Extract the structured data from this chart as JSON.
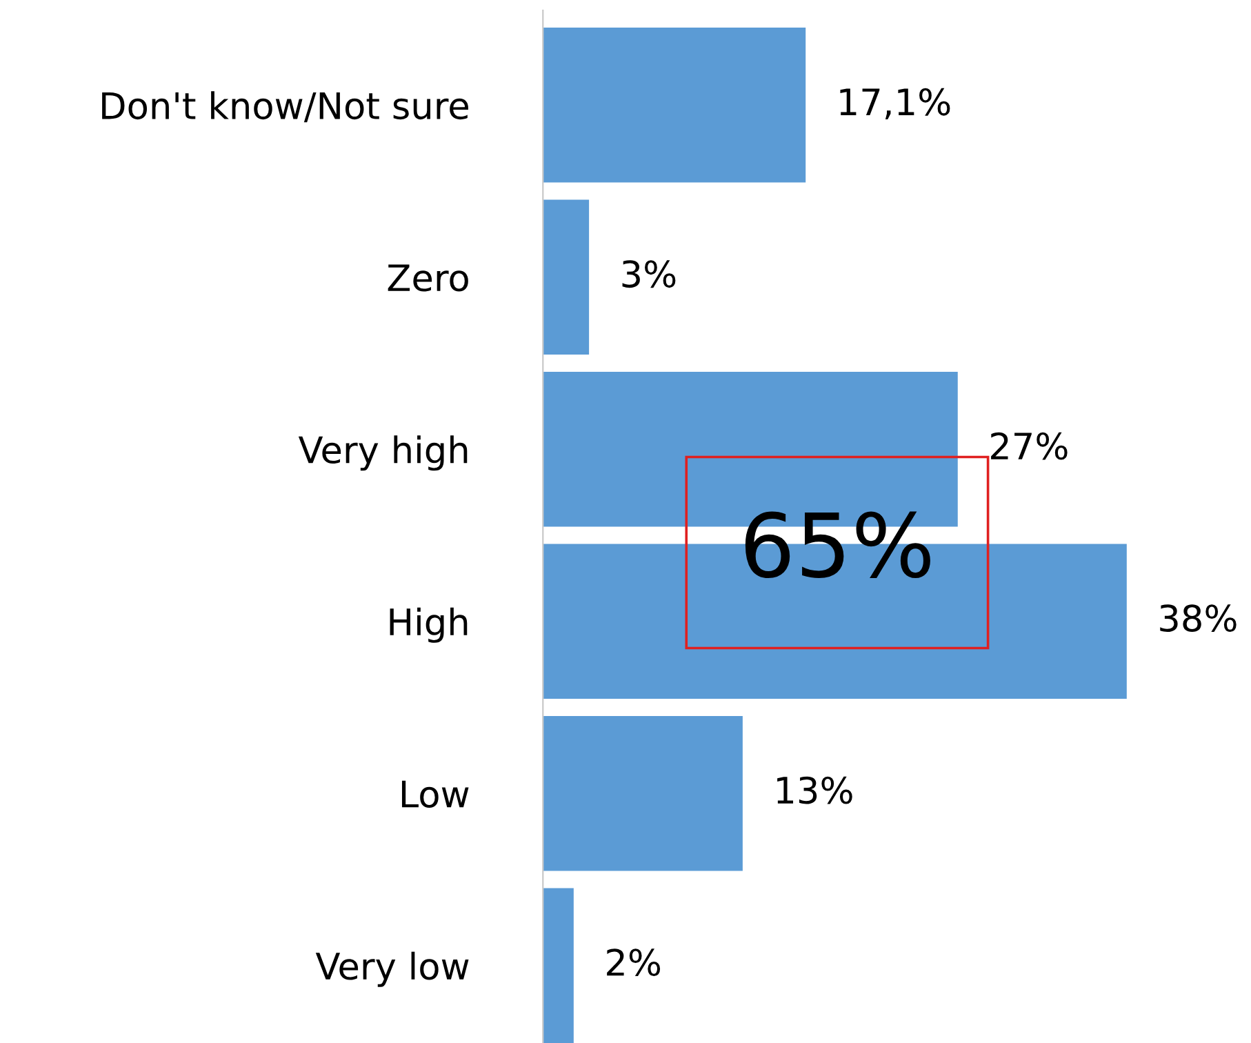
{
  "chart_data": {
    "type": "bar",
    "orientation": "horizontal",
    "categories": [
      "Don't know/Not sure",
      "Zero",
      "Very high",
      "High",
      "Low",
      "Very low"
    ],
    "values": [
      17.1,
      3,
      27,
      38,
      13,
      2
    ],
    "value_labels": [
      "17,1%",
      "3%",
      "27%",
      "38%",
      "13%",
      "2%"
    ],
    "color": "#5b9bd5",
    "annotations": [
      "65%"
    ],
    "grid": false,
    "legend": false
  }
}
